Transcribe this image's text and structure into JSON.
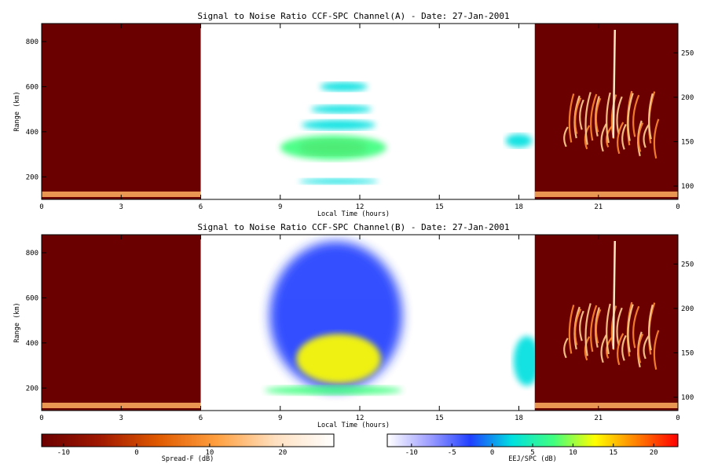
{
  "chart_data": [
    {
      "type": "heatmap",
      "title": "Signal to Noise Ratio CCF-SPC Channel(A) - Date: 27-Jan-2001",
      "xlabel": "Local Time (hours)",
      "ylabel": "Range (km)",
      "xlim": [
        0,
        24
      ],
      "ylim": [
        100,
        880
      ],
      "xticks": [
        "0",
        "3",
        "6",
        "9",
        "12",
        "15",
        "18",
        "21",
        "0"
      ],
      "yticks": [
        200,
        400,
        600,
        800
      ],
      "right_ylim": [
        85,
        283
      ],
      "right_yticks": [
        100,
        150,
        200,
        250
      ],
      "panels": [
        {
          "name": "Spread-F",
          "x_start": 0,
          "x_end": 6,
          "colorbar": "Spread-F"
        },
        {
          "name": "EEJ/SPC",
          "x_start": 6,
          "x_end": 18.6,
          "colorbar": "EEJ/SPC"
        },
        {
          "name": "Spread-F",
          "x_start": 18.6,
          "x_end": 24,
          "colorbar": "Spread-F"
        }
      ],
      "blobs": [
        {
          "t": 11.0,
          "r": 330,
          "dt": 2.6,
          "dr": 32,
          "snr": 22
        },
        {
          "t": 11.0,
          "r": 330,
          "dt": 4.0,
          "dr": 55,
          "snr": 8
        },
        {
          "t": 11.2,
          "r": 430,
          "dt": 2.8,
          "dr": 22,
          "snr": 2
        },
        {
          "t": 11.3,
          "r": 500,
          "dt": 2.3,
          "dr": 18,
          "snr": 0
        },
        {
          "t": 11.4,
          "r": 600,
          "dt": 1.8,
          "dr": 20,
          "snr": 3
        },
        {
          "t": 11.2,
          "r": 180,
          "dt": 3.0,
          "dr": 12,
          "snr": 0
        },
        {
          "t": 18.0,
          "r": 360,
          "dt": 1.0,
          "dr": 30,
          "snr": 0
        }
      ]
    },
    {
      "type": "heatmap",
      "title": "Signal to Noise Ratio CCF-SPC Channel(B) - Date: 27-Jan-2001",
      "xlabel": "Local Time (hours)",
      "ylabel": "Range (km)",
      "xlim": [
        0,
        24
      ],
      "ylim": [
        100,
        880
      ],
      "xticks": [
        "0",
        "3",
        "6",
        "9",
        "12",
        "15",
        "18",
        "21",
        "0"
      ],
      "yticks": [
        200,
        400,
        600,
        800
      ],
      "right_ylim": [
        85,
        283
      ],
      "right_yticks": [
        100,
        150,
        200,
        250
      ],
      "panels": [
        {
          "name": "Spread-F",
          "x_start": 0,
          "x_end": 6,
          "colorbar": "Spread-F"
        },
        {
          "name": "EEJ/SPC",
          "x_start": 6,
          "x_end": 18.6,
          "colorbar": "EEJ/SPC"
        },
        {
          "name": "Spread-F",
          "x_start": 18.6,
          "x_end": 24,
          "colorbar": "Spread-F"
        }
      ],
      "blobs": [
        {
          "t": 11.1,
          "r": 520,
          "dt": 5.0,
          "dr": 330,
          "snr": -1
        },
        {
          "t": 11.2,
          "r": 330,
          "dt": 3.2,
          "dr": 110,
          "snr": 15
        },
        {
          "t": 11.0,
          "r": 190,
          "dt": 5.2,
          "dr": 20,
          "snr": 6
        },
        {
          "t": 18.3,
          "r": 320,
          "dt": 1.0,
          "dr": 110,
          "snr": 3
        }
      ]
    }
  ],
  "colorbars": {
    "spreadf": {
      "label": "Spread-F (dB)",
      "ticks": [
        "-10",
        "0",
        "10",
        "20"
      ],
      "range": [
        -13,
        27
      ],
      "colors": [
        "#6b0000",
        "#a01800",
        "#e05a00",
        "#ffa040",
        "#ffe0c0",
        "#ffffff"
      ]
    },
    "eej": {
      "label": "EEJ/SPC (dB)",
      "ticks": [
        "-10",
        "-5",
        "0",
        "5",
        "10",
        "15",
        "20"
      ],
      "range": [
        -13,
        23
      ],
      "colors": [
        "#ffffff",
        "#a0a0ff",
        "#2040ff",
        "#00e0e0",
        "#40ff80",
        "#ffff00",
        "#ff8000",
        "#ff0000"
      ]
    }
  }
}
